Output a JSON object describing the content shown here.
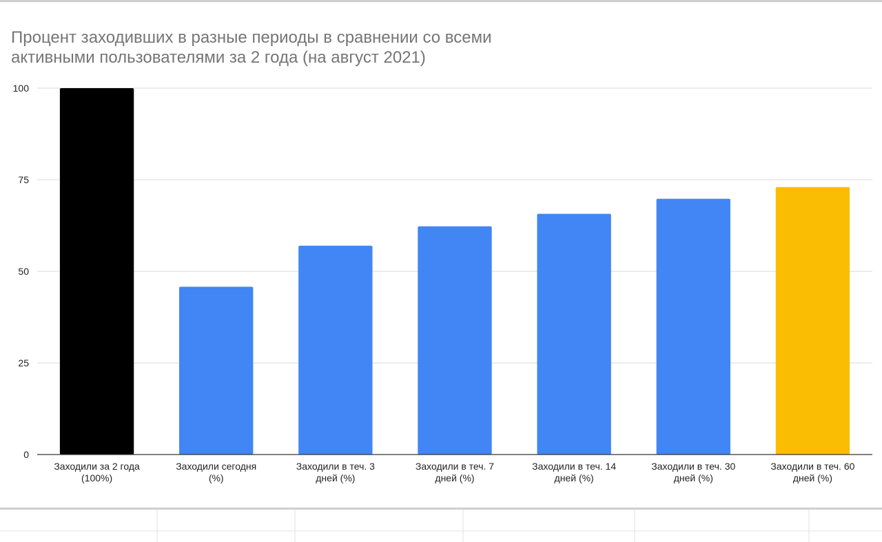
{
  "chart_data": {
    "type": "bar",
    "title": "Процент заходивших в разные периоды в сравнении со всеми активными пользователями за 2 года (на август 2021)",
    "title_lines": [
      "Процент заходивших в разные периоды в сравнении со всеми",
      "активными пользователями за 2 года (на август 2021)"
    ],
    "categories": [
      [
        "Заходили за 2 года",
        "(100%)"
      ],
      [
        "Заходили сегодня",
        "(%)"
      ],
      [
        "Заходили в теч. 3",
        "дней (%)"
      ],
      [
        "Заходили в теч. 7",
        "дней (%)"
      ],
      [
        "Заходили в теч. 14",
        "дней (%)"
      ],
      [
        "Заходили в теч. 30",
        "дней (%)"
      ],
      [
        "Заходили в теч. 60",
        "дней (%)"
      ]
    ],
    "values": [
      100,
      45.8,
      57,
      62.3,
      65.7,
      69.8,
      73
    ],
    "bar_colors": [
      "#000000",
      "#4285f4",
      "#4285f4",
      "#4285f4",
      "#4285f4",
      "#4285f4",
      "#fbbc04"
    ],
    "ylim": [
      0,
      100
    ],
    "yticks": [
      0,
      25,
      50,
      75,
      100
    ],
    "xlabel": "",
    "ylabel": "",
    "grid": true,
    "legend": "none",
    "colors": {
      "gridline": "#dadada",
      "axis": "#333333",
      "title": "#757575",
      "tick_label": "#222222"
    }
  }
}
